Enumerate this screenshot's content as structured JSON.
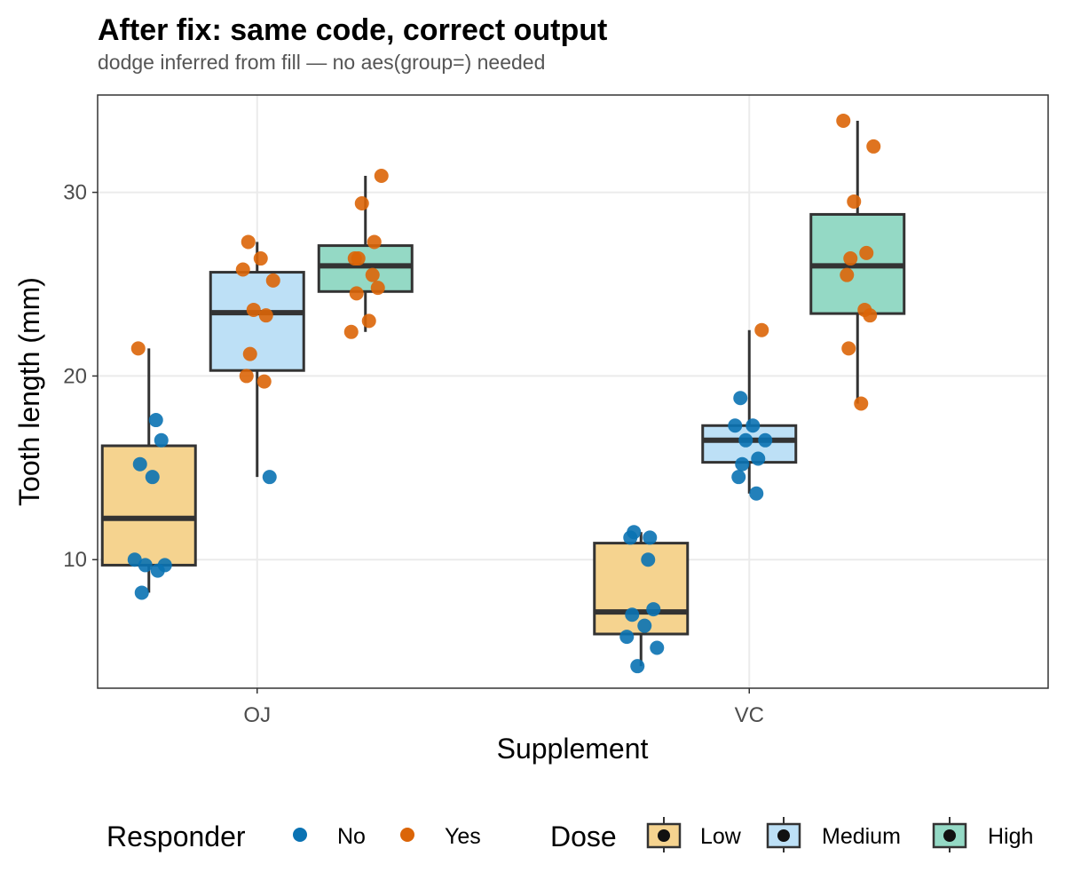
{
  "chart_data": {
    "type": "boxplot",
    "title": "After fix: same code, correct output",
    "subtitle": "dodge inferred from fill — no aes(group=) needed",
    "xlabel": "Supplement",
    "ylabel": "Tooth length (mm)",
    "ylim": [
      3,
      35.3
    ],
    "yticks": [
      10,
      20,
      30
    ],
    "categories": [
      "OJ",
      "VC"
    ],
    "grid": true,
    "legend_position": "bottom",
    "dose_levels": [
      "Low",
      "Medium",
      "High"
    ],
    "dose_colors": {
      "Low": "#f5d38f",
      "Medium": "#bde0f6",
      "High": "#94d9c5"
    },
    "responder_levels": [
      "No",
      "Yes"
    ],
    "responder_colors": {
      "No": "#0a72b3",
      "Yes": "#db6508"
    },
    "box_edge_color": "#333333",
    "boxes": [
      {
        "supp": "OJ",
        "dose": "Low",
        "min": 8.2,
        "q1": 9.7,
        "median": 12.25,
        "q3": 16.2,
        "max": 21.5,
        "points": [
          {
            "y": 21.5,
            "r": "Yes"
          },
          {
            "y": 17.6,
            "r": "No"
          },
          {
            "y": 16.5,
            "r": "No"
          },
          {
            "y": 15.2,
            "r": "No"
          },
          {
            "y": 14.5,
            "r": "No"
          },
          {
            "y": 10.0,
            "r": "No"
          },
          {
            "y": 9.7,
            "r": "No"
          },
          {
            "y": 9.7,
            "r": "No"
          },
          {
            "y": 9.4,
            "r": "No"
          },
          {
            "y": 8.2,
            "r": "No"
          }
        ]
      },
      {
        "supp": "OJ",
        "dose": "Medium",
        "min": 14.5,
        "q1": 20.3,
        "median": 23.45,
        "q3": 25.65,
        "max": 27.3,
        "points": [
          {
            "y": 27.3,
            "r": "Yes"
          },
          {
            "y": 26.4,
            "r": "Yes"
          },
          {
            "y": 25.8,
            "r": "Yes"
          },
          {
            "y": 25.2,
            "r": "Yes"
          },
          {
            "y": 23.6,
            "r": "Yes"
          },
          {
            "y": 23.3,
            "r": "Yes"
          },
          {
            "y": 21.2,
            "r": "Yes"
          },
          {
            "y": 20.0,
            "r": "Yes"
          },
          {
            "y": 19.7,
            "r": "Yes"
          },
          {
            "y": 14.5,
            "r": "No"
          }
        ]
      },
      {
        "supp": "OJ",
        "dose": "High",
        "min": 22.4,
        "q1": 24.6,
        "median": 26.0,
        "q3": 27.1,
        "max": 30.9,
        "points": [
          {
            "y": 30.9,
            "r": "Yes"
          },
          {
            "y": 29.4,
            "r": "Yes"
          },
          {
            "y": 27.3,
            "r": "Yes"
          },
          {
            "y": 26.4,
            "r": "Yes"
          },
          {
            "y": 26.4,
            "r": "Yes"
          },
          {
            "y": 25.5,
            "r": "Yes"
          },
          {
            "y": 24.8,
            "r": "Yes"
          },
          {
            "y": 24.5,
            "r": "Yes"
          },
          {
            "y": 23.0,
            "r": "Yes"
          },
          {
            "y": 22.4,
            "r": "Yes"
          }
        ]
      },
      {
        "supp": "VC",
        "dose": "Low",
        "min": 4.2,
        "q1": 5.95,
        "median": 7.15,
        "q3": 10.9,
        "max": 11.5,
        "points": [
          {
            "y": 11.5,
            "r": "No"
          },
          {
            "y": 11.2,
            "r": "No"
          },
          {
            "y": 10.0,
            "r": "No"
          },
          {
            "y": 7.3,
            "r": "No"
          },
          {
            "y": 7.0,
            "r": "No"
          },
          {
            "y": 6.4,
            "r": "No"
          },
          {
            "y": 5.8,
            "r": "No"
          },
          {
            "y": 5.2,
            "r": "No"
          },
          {
            "y": 4.2,
            "r": "No"
          },
          {
            "y": 11.2,
            "r": "No"
          }
        ]
      },
      {
        "supp": "VC",
        "dose": "Medium",
        "min": 13.6,
        "q1": 15.3,
        "median": 16.5,
        "q3": 17.3,
        "max": 22.5,
        "points": [
          {
            "y": 22.5,
            "r": "Yes"
          },
          {
            "y": 18.8,
            "r": "No"
          },
          {
            "y": 17.3,
            "r": "No"
          },
          {
            "y": 17.3,
            "r": "No"
          },
          {
            "y": 16.5,
            "r": "No"
          },
          {
            "y": 16.5,
            "r": "No"
          },
          {
            "y": 15.5,
            "r": "No"
          },
          {
            "y": 15.2,
            "r": "No"
          },
          {
            "y": 14.5,
            "r": "No"
          },
          {
            "y": 13.6,
            "r": "No"
          }
        ]
      },
      {
        "supp": "VC",
        "dose": "High",
        "min": 18.5,
        "q1": 23.4,
        "median": 26.0,
        "q3": 28.8,
        "max": 33.9,
        "points": [
          {
            "y": 33.9,
            "r": "Yes"
          },
          {
            "y": 32.5,
            "r": "Yes"
          },
          {
            "y": 29.5,
            "r": "Yes"
          },
          {
            "y": 26.7,
            "r": "Yes"
          },
          {
            "y": 26.4,
            "r": "Yes"
          },
          {
            "y": 25.5,
            "r": "Yes"
          },
          {
            "y": 23.6,
            "r": "Yes"
          },
          {
            "y": 23.3,
            "r": "Yes"
          },
          {
            "y": 21.5,
            "r": "Yes"
          },
          {
            "y": 18.5,
            "r": "Yes"
          }
        ]
      }
    ]
  },
  "legend": {
    "responder_title": "Responder",
    "responder_items": [
      "No",
      "Yes"
    ],
    "dose_title": "Dose",
    "dose_items": [
      "Low",
      "Medium",
      "High"
    ]
  }
}
